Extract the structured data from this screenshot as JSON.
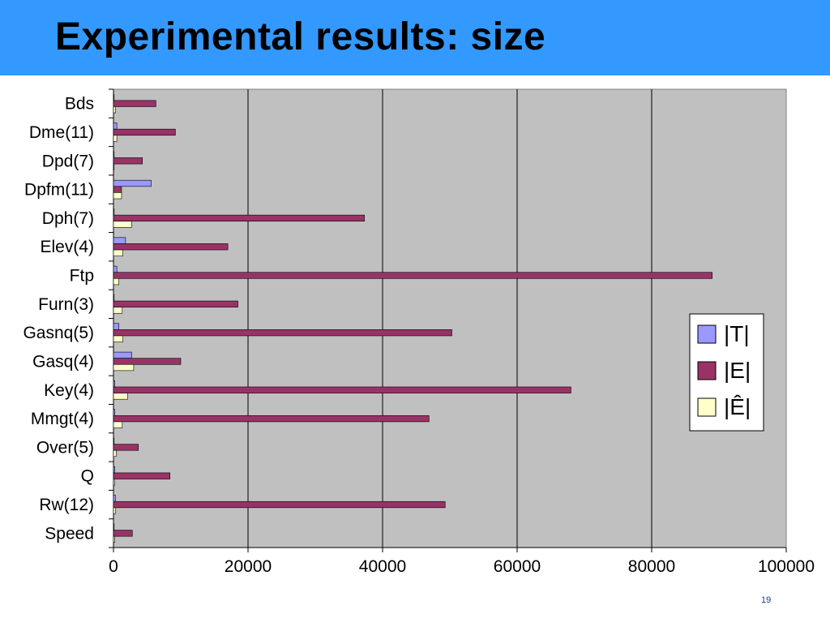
{
  "slide": {
    "title": "Experimental results: size",
    "page_number": "19"
  },
  "colors": {
    "title_bar": "#3399ff",
    "plot_bg": "#c0c0c0"
  },
  "chart_data": {
    "type": "bar",
    "orientation": "horizontal",
    "title": "",
    "xlabel": "",
    "ylabel": "",
    "xlim": [
      0,
      100000
    ],
    "x_ticks": [
      0,
      20000,
      40000,
      60000,
      80000,
      100000
    ],
    "grid": true,
    "legend_position": "right",
    "categories": [
      "Bds",
      "Dme(11)",
      "Dpd(7)",
      "Dpfm(11)",
      "Dph(7)",
      "Elev(4)",
      "Ftp",
      "Furn(3)",
      "Gasnq(5)",
      "Gasq(4)",
      "Key(4)",
      "Mmgt(4)",
      "Over(5)",
      "Q",
      "Rw(12)",
      "Speed"
    ],
    "series": [
      {
        "name": "|T|",
        "color": "#9999ff",
        "values": [
          50,
          500,
          50,
          5600,
          100,
          1800,
          500,
          100,
          800,
          2700,
          200,
          200,
          50,
          200,
          300,
          100
        ]
      },
      {
        "name": "|E|",
        "color": "#993366",
        "values": [
          6300,
          9200,
          4300,
          1200,
          37300,
          17000,
          89000,
          18500,
          50300,
          10000,
          68000,
          46900,
          3700,
          8400,
          49300,
          2800
        ]
      },
      {
        "name": "|Ê|",
        "color": "#ffffcc",
        "values": [
          300,
          500,
          50,
          1200,
          2700,
          1400,
          800,
          1300,
          1400,
          3000,
          2100,
          1300,
          400,
          200,
          300,
          200
        ]
      }
    ]
  }
}
